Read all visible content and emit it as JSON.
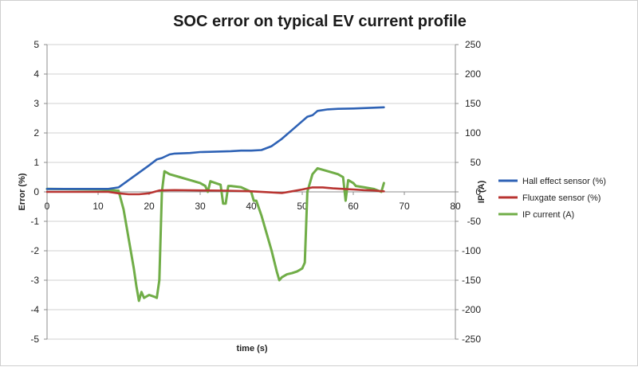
{
  "chart_data": {
    "type": "line",
    "title": "SOC error on typical EV current profile",
    "xlabel": "time (s)",
    "ylabel": "Error (%)",
    "y2label": "IP (A)",
    "xlim": [
      0,
      80
    ],
    "ylim": [
      -5,
      5
    ],
    "y2lim": [
      -250,
      250
    ],
    "x_ticks": [
      0,
      10,
      20,
      30,
      40,
      50,
      60,
      70,
      80
    ],
    "y_ticks": [
      -5,
      -4,
      -3,
      -2,
      -1,
      0,
      1,
      2,
      3,
      4,
      5
    ],
    "y2_ticks": [
      -250,
      -200,
      -150,
      -100,
      -50,
      0,
      50,
      100,
      150,
      200,
      250
    ],
    "grid": "horizontal",
    "legend_position": "right",
    "series": [
      {
        "name": "Hall effect sensor (%)",
        "axis": "left",
        "color": "#2e62b5",
        "x": [
          0,
          12,
          14,
          16,
          18,
          20,
          21.5,
          22.5,
          24,
          25,
          28,
          30,
          32,
          34,
          36,
          38,
          40,
          42,
          44,
          46,
          48,
          50,
          51,
          52,
          53,
          55,
          57,
          60,
          63,
          66
        ],
        "y": [
          0.1,
          0.1,
          0.15,
          0.4,
          0.65,
          0.9,
          1.1,
          1.15,
          1.27,
          1.3,
          1.32,
          1.35,
          1.36,
          1.37,
          1.38,
          1.4,
          1.4,
          1.42,
          1.55,
          1.8,
          2.1,
          2.4,
          2.55,
          2.6,
          2.75,
          2.8,
          2.82,
          2.83,
          2.85,
          2.87
        ]
      },
      {
        "name": "Fluxgate sensor (%)",
        "axis": "left",
        "color": "#b83431",
        "x": [
          0,
          12,
          14,
          16,
          18,
          20,
          22,
          25,
          30,
          35,
          40,
          44,
          46,
          48,
          50,
          52,
          54,
          56,
          58,
          60,
          62,
          64,
          65,
          66
        ],
        "y": [
          0,
          0,
          -0.05,
          -0.08,
          -0.08,
          -0.05,
          0.05,
          0.06,
          0.05,
          0.04,
          0.02,
          -0.02,
          -0.04,
          0.02,
          0.08,
          0.15,
          0.15,
          0.12,
          0.1,
          0.08,
          0.06,
          0.05,
          0.03,
          0.02
        ]
      },
      {
        "name": "IP current (A)",
        "axis": "right",
        "color": "#70ad47",
        "x": [
          0,
          10,
          14,
          15,
          16,
          17,
          17.5,
          18,
          18.5,
          19,
          20,
          21,
          21.5,
          22,
          22.5,
          23,
          24,
          26,
          28,
          30,
          31,
          31.5,
          32,
          33,
          34,
          34.5,
          35,
          35.5,
          36,
          38,
          40,
          40.5,
          41,
          42,
          43,
          44,
          45,
          45.5,
          46,
          47,
          48,
          49,
          50,
          50.5,
          51,
          52,
          53,
          55,
          57,
          58,
          58.5,
          59,
          60,
          60.5,
          62,
          64,
          65.5,
          66
        ],
        "y": [
          5,
          4,
          2,
          -30,
          -80,
          -130,
          -160,
          -185,
          -170,
          -180,
          -175,
          -178,
          -180,
          -150,
          0,
          35,
          30,
          25,
          20,
          15,
          10,
          0,
          18,
          15,
          12,
          -20,
          -20,
          10,
          10,
          8,
          0,
          -15,
          -15,
          -40,
          -70,
          -100,
          -135,
          -150,
          -145,
          -140,
          -138,
          -135,
          -130,
          -120,
          0,
          30,
          40,
          35,
          30,
          25,
          -15,
          20,
          15,
          10,
          8,
          5,
          0,
          15
        ]
      }
    ]
  }
}
